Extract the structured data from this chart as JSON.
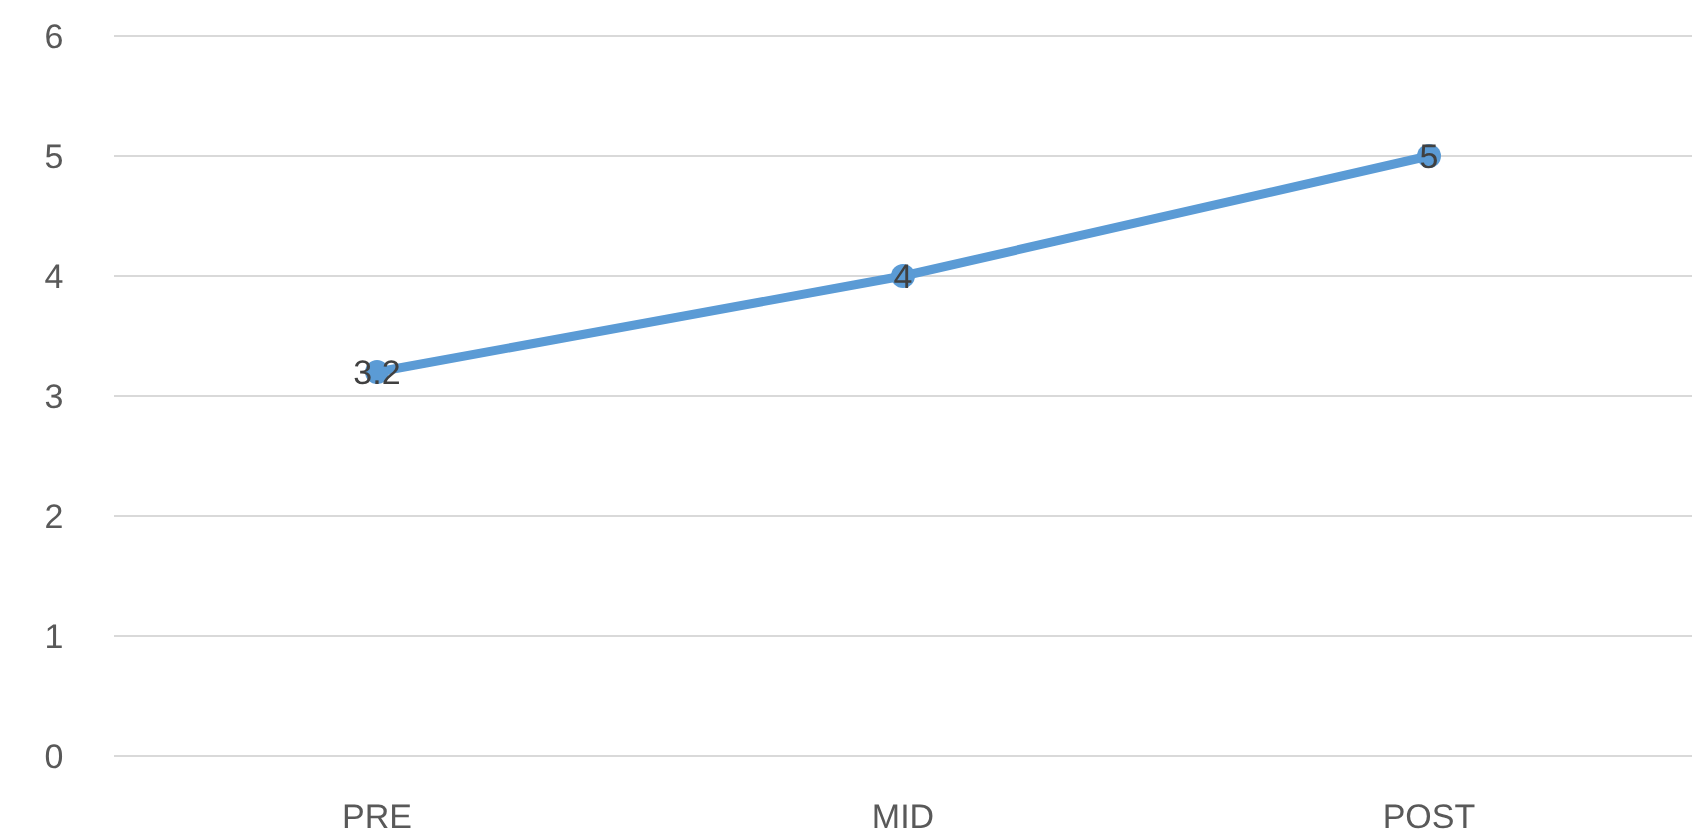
{
  "chart_data": {
    "type": "line",
    "categories": [
      "PRE",
      "MID",
      "POST"
    ],
    "series": [
      {
        "color": "#5b9bd5",
        "values": [
          3.2,
          4,
          5
        ]
      }
    ],
    "ylim": [
      0,
      6
    ],
    "yticks": [
      0,
      1,
      2,
      3,
      4,
      5,
      6
    ],
    "grid": "y",
    "marker": "circle",
    "data_labels": true
  }
}
